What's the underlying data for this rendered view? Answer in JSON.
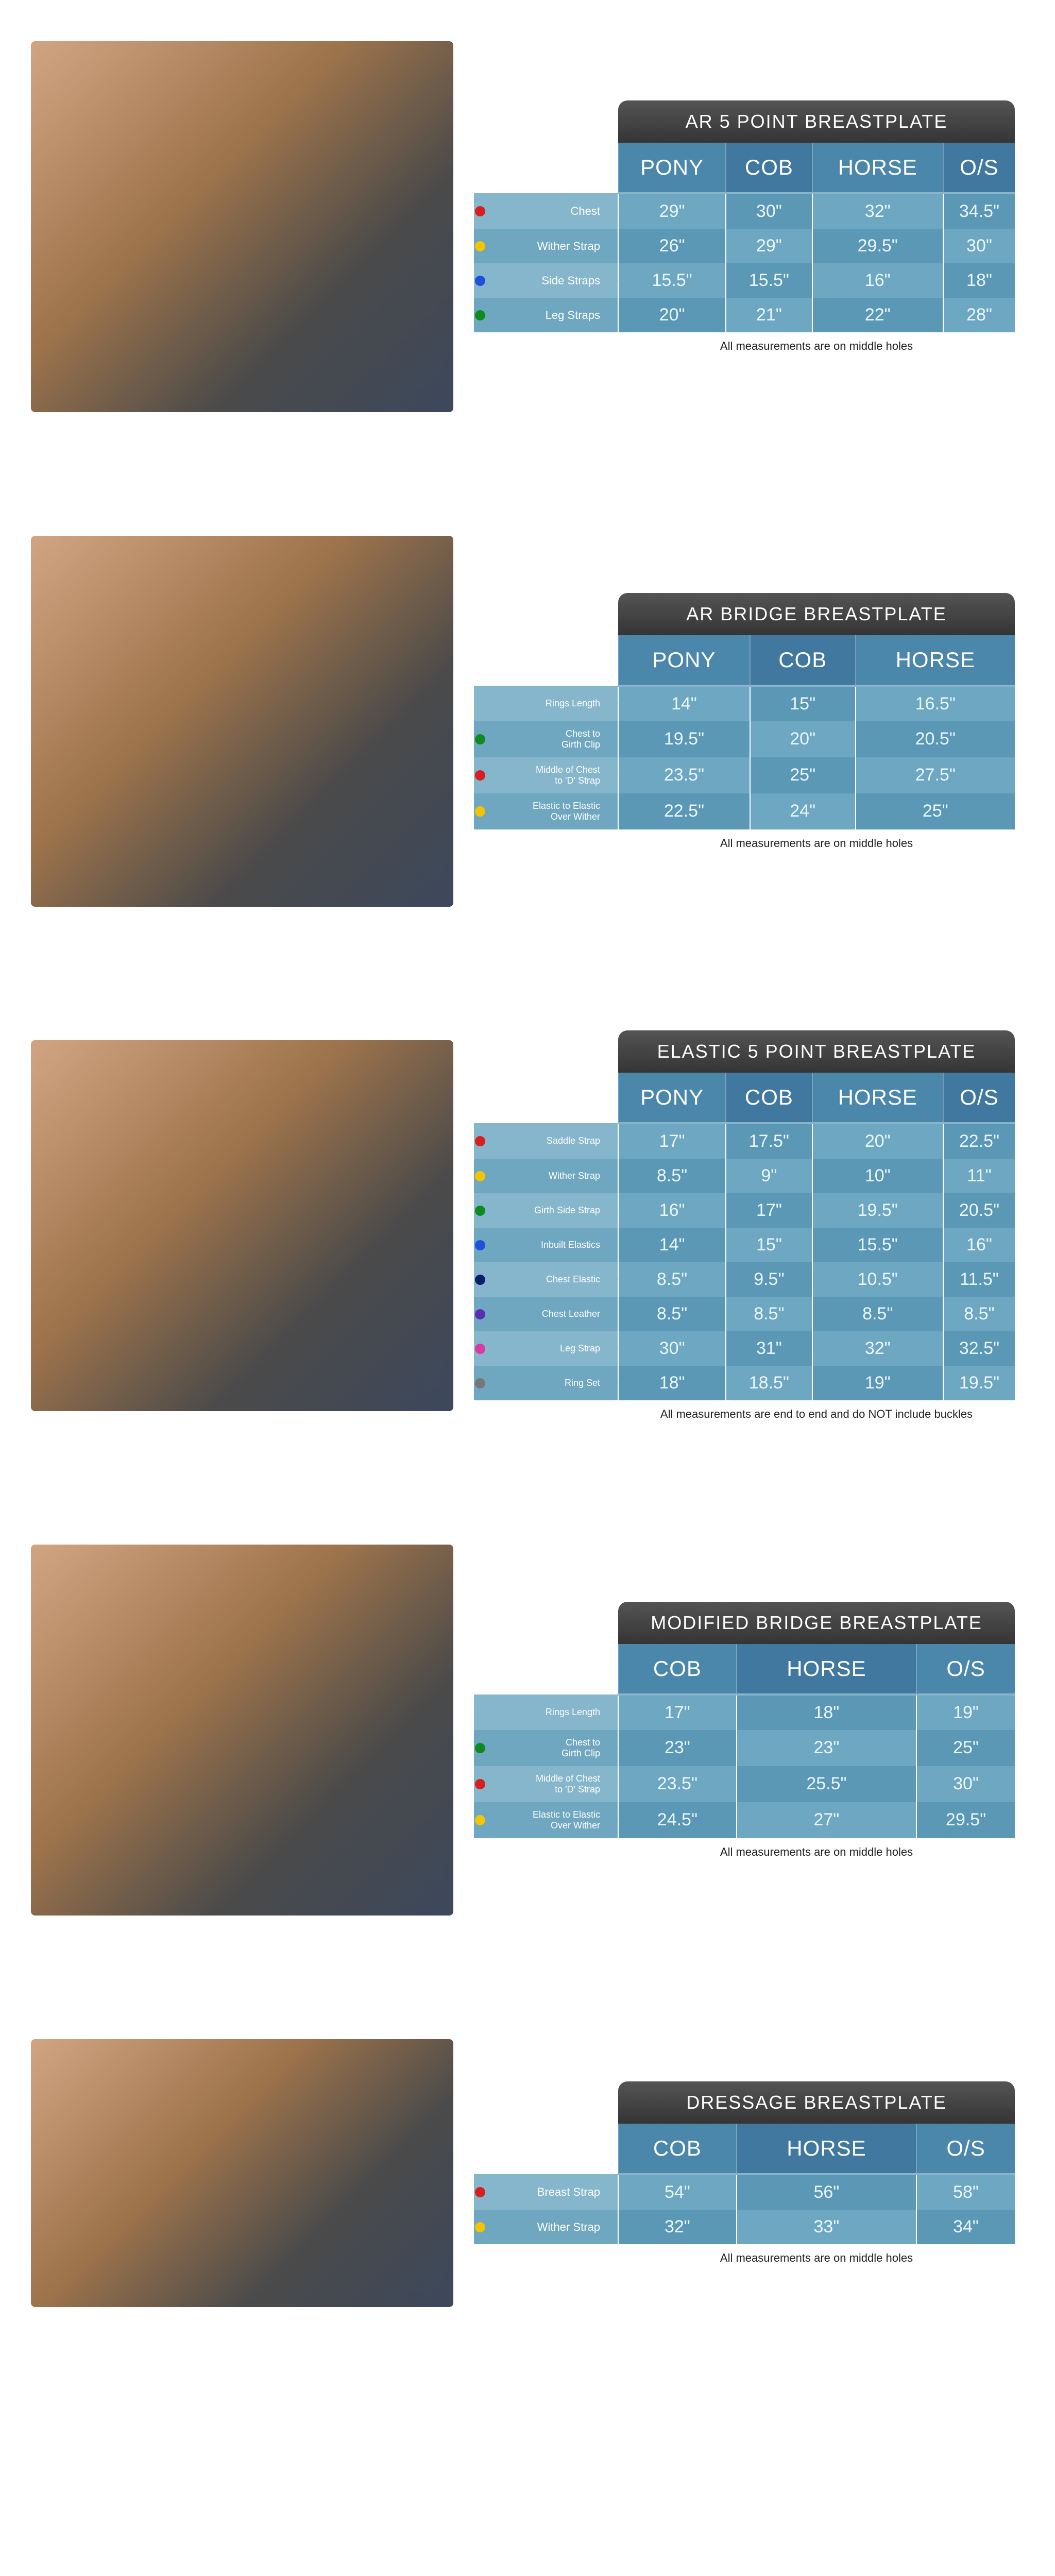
{
  "colors": {
    "header_a": "#4b87ab",
    "header_b": "#4078a0",
    "row_a": "#6da7c1",
    "row_b": "#5b98b6",
    "label_a": "#86b6cc",
    "label_b": "#6fa7c1",
    "title_grad_top": "#545454",
    "title_grad_bot": "#353535",
    "dot_red": "#d81e1e",
    "dot_yellow": "#f4c400",
    "dot_blue": "#1e50d8",
    "dot_green": "#0f8a1e",
    "dot_darkblue": "#0a1e6e",
    "dot_purple": "#5a2eb0",
    "dot_pink": "#d83aa0",
    "dot_grey": "#777777"
  },
  "tables": [
    {
      "title": "AR 5 POINT BREASTPLATE",
      "footnote": "All measurements are on middle holes",
      "columns": [
        "PONY",
        "COB",
        "HORSE",
        "O/S"
      ],
      "label_size": "big",
      "rows": [
        {
          "label": "Chest",
          "dot": "dot_red",
          "values": [
            "29\"",
            "30\"",
            "32\"",
            "34.5\""
          ]
        },
        {
          "label": "Wither Strap",
          "dot": "dot_yellow",
          "values": [
            "26\"",
            "29\"",
            "29.5\"",
            "30\""
          ]
        },
        {
          "label": "Side Straps",
          "dot": "dot_blue",
          "values": [
            "15.5\"",
            "15.5\"",
            "16\"",
            "18\""
          ]
        },
        {
          "label": "Leg Straps",
          "dot": "dot_green",
          "values": [
            "20\"",
            "21\"",
            "22\"",
            "28\""
          ]
        }
      ],
      "photo_h": "tall"
    },
    {
      "title": "AR BRIDGE BREASTPLATE",
      "footnote": "All measurements are on middle holes",
      "columns": [
        "PONY",
        "COB",
        "HORSE"
      ],
      "label_size": "small",
      "rows": [
        {
          "label": "Rings Length",
          "dot": null,
          "values": [
            "14\"",
            "15\"",
            "16.5\""
          ]
        },
        {
          "label": "Chest to\nGirth Clip",
          "dot": "dot_green",
          "values": [
            "19.5\"",
            "20\"",
            "20.5\""
          ]
        },
        {
          "label": "Middle of Chest\nto 'D' Strap",
          "dot": "dot_red",
          "values": [
            "23.5\"",
            "25\"",
            "27.5\""
          ]
        },
        {
          "label": "Elastic to Elastic\nOver Wither",
          "dot": "dot_yellow",
          "values": [
            "22.5\"",
            "24\"",
            "25\""
          ]
        }
      ],
      "photo_h": "tall"
    },
    {
      "title": "ELASTIC 5 POINT BREASTPLATE",
      "footnote": "All measurements are end to end and do NOT include buckles",
      "columns": [
        "PONY",
        "COB",
        "HORSE",
        "O/S"
      ],
      "label_size": "small",
      "rows": [
        {
          "label": "Saddle Strap",
          "dot": "dot_red",
          "values": [
            "17\"",
            "17.5\"",
            "20\"",
            "22.5\""
          ]
        },
        {
          "label": "Wither Strap",
          "dot": "dot_yellow",
          "values": [
            "8.5\"",
            "9\"",
            "10\"",
            "11\""
          ]
        },
        {
          "label": "Girth Side Strap",
          "dot": "dot_green",
          "values": [
            "16\"",
            "17\"",
            "19.5\"",
            "20.5\""
          ]
        },
        {
          "label": "Inbuilt Elastics",
          "dot": "dot_blue",
          "values": [
            "14\"",
            "15\"",
            "15.5\"",
            "16\""
          ]
        },
        {
          "label": "Chest Elastic",
          "dot": "dot_darkblue",
          "values": [
            "8.5\"",
            "9.5\"",
            "10.5\"",
            "11.5\""
          ]
        },
        {
          "label": "Chest Leather",
          "dot": "dot_purple",
          "values": [
            "8.5\"",
            "8.5\"",
            "8.5\"",
            "8.5\""
          ]
        },
        {
          "label": "Leg Strap",
          "dot": "dot_pink",
          "values": [
            "30\"",
            "31\"",
            "32\"",
            "32.5\""
          ]
        },
        {
          "label": "Ring Set",
          "dot": "dot_grey",
          "values": [
            "18\"",
            "18.5\"",
            "19\"",
            "19.5\""
          ]
        }
      ],
      "photo_h": "tall"
    },
    {
      "title": "MODIFIED BRIDGE BREASTPLATE",
      "footnote": "All measurements are on middle holes",
      "columns": [
        "COB",
        "HORSE",
        "O/S"
      ],
      "label_size": "small",
      "rows": [
        {
          "label": "Rings Length",
          "dot": null,
          "values": [
            "17\"",
            "18\"",
            "19\""
          ]
        },
        {
          "label": "Chest to\nGirth Clip",
          "dot": "dot_green",
          "values": [
            "23\"",
            "23\"",
            "25\""
          ]
        },
        {
          "label": "Middle of Chest\nto 'D' Strap",
          "dot": "dot_red",
          "values": [
            "23.5\"",
            "25.5\"",
            "30\""
          ]
        },
        {
          "label": "Elastic to Elastic\nOver Wither",
          "dot": "dot_yellow",
          "values": [
            "24.5\"",
            "27\"",
            "29.5\""
          ]
        }
      ],
      "photo_h": "tall"
    },
    {
      "title": "DRESSAGE BREASTPLATE",
      "footnote": "All measurements are on middle holes",
      "columns": [
        "COB",
        "HORSE",
        "O/S"
      ],
      "label_size": "big",
      "rows": [
        {
          "label": "Breast Strap",
          "dot": "dot_red",
          "values": [
            "54\"",
            "56\"",
            "58\""
          ]
        },
        {
          "label": "Wither Strap",
          "dot": "dot_yellow",
          "values": [
            "32\"",
            "33\"",
            "34\""
          ]
        }
      ],
      "photo_h": "short"
    }
  ]
}
